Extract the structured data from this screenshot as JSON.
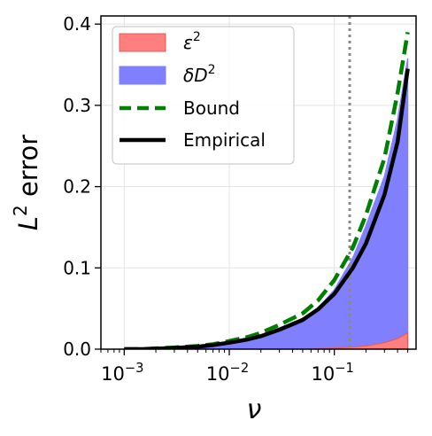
{
  "chart_data": {
    "type": "area",
    "x_scale": "log",
    "xlim": [
      0.0006,
      0.6
    ],
    "ylim": [
      0,
      0.41
    ],
    "xlabel": "ν",
    "ylabel": "L² error",
    "ylabel_parts": {
      "base": "L",
      "sup": "2",
      "rest": " error"
    },
    "x_ticks": [
      {
        "value": 0.001,
        "base": "10",
        "exp": "−3"
      },
      {
        "value": 0.01,
        "base": "10",
        "exp": "−2"
      },
      {
        "value": 0.1,
        "base": "10",
        "exp": "−1"
      }
    ],
    "y_ticks": [
      {
        "value": 0.0,
        "label": "0.0"
      },
      {
        "value": 0.1,
        "label": "0.1"
      },
      {
        "value": 0.2,
        "label": "0.2"
      },
      {
        "value": 0.3,
        "label": "0.3"
      },
      {
        "value": 0.4,
        "label": "0.4"
      }
    ],
    "grid": true,
    "legend_position": "top-left",
    "vline": {
      "x": 0.14,
      "style": "dotted",
      "color": "#888888"
    },
    "x": [
      0.001,
      0.0015,
      0.002,
      0.003,
      0.005,
      0.007,
      0.01,
      0.015,
      0.02,
      0.03,
      0.05,
      0.07,
      0.1,
      0.15,
      0.2,
      0.3,
      0.4,
      0.5
    ],
    "series": [
      {
        "name": "ε²",
        "name_parts": {
          "base": "ε",
          "sup": "2"
        },
        "kind": "area",
        "color": "#ff7f7f",
        "values": [
          0.0,
          0.0,
          0.0,
          0.0,
          0.0,
          0.0,
          0.0,
          0.0001,
          0.0001,
          0.0002,
          0.0004,
          0.0007,
          0.0012,
          0.0025,
          0.004,
          0.008,
          0.013,
          0.02
        ]
      },
      {
        "name": "δD²",
        "name_parts": {
          "base": "δD",
          "sup": "2"
        },
        "kind": "area",
        "stacked_on": "ε²",
        "color": "#8080ff",
        "values": [
          0.0,
          0.0,
          0.0005,
          0.0015,
          0.003,
          0.005,
          0.008,
          0.012,
          0.016,
          0.024,
          0.036,
          0.05,
          0.072,
          0.11,
          0.148,
          0.205,
          0.27,
          0.338
        ]
      },
      {
        "name": "Bound",
        "kind": "line",
        "style": "dashed",
        "color": "#008000",
        "values": [
          0.0,
          0.0,
          0.001,
          0.002,
          0.004,
          0.006,
          0.01,
          0.015,
          0.02,
          0.03,
          0.044,
          0.06,
          0.085,
          0.125,
          0.165,
          0.235,
          0.315,
          0.39
        ]
      },
      {
        "name": "Empirical",
        "kind": "line",
        "style": "solid",
        "color": "#000000",
        "values": [
          0.0,
          0.0,
          0.0005,
          0.0015,
          0.003,
          0.005,
          0.008,
          0.012,
          0.016,
          0.024,
          0.036,
          0.049,
          0.068,
          0.1,
          0.13,
          0.19,
          0.255,
          0.345
        ]
      }
    ]
  }
}
